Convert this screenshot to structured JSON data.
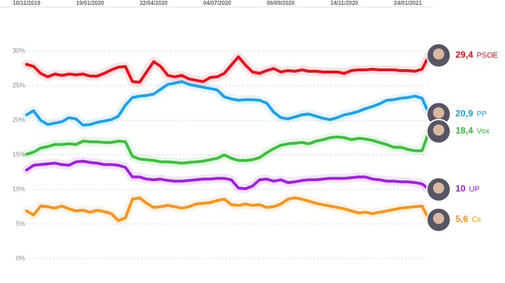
{
  "chart_data": {
    "type": "line",
    "categories": [
      "10/11/2019",
      null,
      null,
      null,
      null,
      null,
      null,
      null,
      null,
      "19/01/2020",
      null,
      null,
      null,
      null,
      null,
      null,
      null,
      null,
      "22/04/2020",
      null,
      null,
      null,
      null,
      null,
      null,
      null,
      null,
      "04/07/2020",
      null,
      null,
      null,
      null,
      null,
      null,
      null,
      null,
      "06/09/2020",
      null,
      null,
      null,
      null,
      null,
      null,
      null,
      null,
      "14/11/2020",
      null,
      null,
      null,
      null,
      null,
      null,
      null,
      null,
      "24/01/2021",
      null,
      null,
      null
    ],
    "series": [
      {
        "name": "PSOE",
        "color": "#e8101a",
        "values": [
          28.1,
          27.8,
          26.8,
          26.3,
          26.7,
          26.5,
          26.7,
          26.6,
          26.7,
          26.4,
          26.4,
          26.8,
          27.3,
          27.7,
          27.8,
          25.6,
          25.5,
          27,
          28.5,
          27.8,
          26.5,
          26.3,
          26.5,
          26,
          25.8,
          25.6,
          26.2,
          26.3,
          26.8,
          28,
          29.2,
          28,
          27,
          26.8,
          27.2,
          27.5,
          27,
          27.2,
          27.1,
          27.3,
          27.1,
          27.1,
          27,
          27,
          27,
          26.8,
          27.2,
          27.3,
          27.3,
          27.4,
          27.3,
          27.3,
          27.3,
          27.2,
          27.2,
          27.1,
          27.4,
          29.4
        ],
        "value_labels": [
          null,
          null,
          null,
          null,
          null,
          null,
          null,
          null,
          null,
          null,
          null,
          null,
          null,
          null,
          null,
          null,
          null,
          null,
          null,
          null,
          null,
          null,
          null,
          null,
          null,
          null,
          null,
          null,
          null,
          null,
          null,
          null,
          null,
          null,
          null,
          null,
          null,
          null,
          null,
          null,
          null,
          null,
          null,
          null,
          null,
          null,
          null,
          null,
          null,
          null,
          null,
          null,
          null,
          null,
          null,
          null,
          null,
          "29,4"
        ]
      },
      {
        "name": "PP",
        "color": "#1ea1e8",
        "values": [
          20.8,
          21.4,
          20,
          19.4,
          19.6,
          19.8,
          20.4,
          20.2,
          19.3,
          19.4,
          19.7,
          19.9,
          20.1,
          20.6,
          22.2,
          23.3,
          23.5,
          23.6,
          23.8,
          24.5,
          25.2,
          25.4,
          25.6,
          25.2,
          25,
          24.8,
          24.6,
          24.4,
          23.4,
          23.1,
          22.9,
          23,
          23,
          22.9,
          22.5,
          21.2,
          20.4,
          20.2,
          20.5,
          20.8,
          20.9,
          20.6,
          20.3,
          20.1,
          20.4,
          20.8,
          21,
          21.3,
          21.7,
          22,
          22.4,
          22.9,
          23,
          23.2,
          23.3,
          23.5,
          23.2,
          20.9
        ],
        "value_labels": [
          null,
          null,
          null,
          null,
          null,
          null,
          null,
          null,
          null,
          null,
          null,
          null,
          null,
          null,
          null,
          null,
          null,
          null,
          null,
          null,
          null,
          null,
          null,
          null,
          null,
          null,
          null,
          null,
          null,
          null,
          null,
          null,
          null,
          null,
          null,
          null,
          null,
          null,
          null,
          null,
          null,
          null,
          null,
          null,
          null,
          null,
          null,
          null,
          null,
          null,
          null,
          null,
          null,
          null,
          null,
          null,
          null,
          "20,9"
        ]
      },
      {
        "name": "Vox",
        "color": "#3cbf3c",
        "values": [
          15.1,
          15.4,
          16,
          16.2,
          16.5,
          16.5,
          16.6,
          16.5,
          17,
          16.9,
          16.9,
          16.8,
          16.8,
          17,
          16.9,
          14.8,
          14.4,
          14.3,
          14.2,
          14,
          14,
          13.9,
          13.8,
          13.9,
          14,
          14.1,
          14.3,
          14.5,
          15,
          14.5,
          14.2,
          14.2,
          14.3,
          14.6,
          15.3,
          15.9,
          16.4,
          16.6,
          16.7,
          16.8,
          16.6,
          17,
          17.2,
          17.5,
          17.6,
          17.5,
          17.2,
          17.4,
          17.3,
          17.1,
          16.8,
          16.5,
          16.1,
          16.1,
          15.8,
          15.6,
          15.6,
          18.4
        ],
        "value_labels": [
          null,
          null,
          null,
          null,
          null,
          null,
          null,
          null,
          null,
          null,
          null,
          null,
          null,
          null,
          null,
          null,
          null,
          null,
          null,
          null,
          null,
          null,
          null,
          null,
          null,
          null,
          null,
          null,
          null,
          null,
          null,
          null,
          null,
          null,
          null,
          null,
          null,
          null,
          null,
          null,
          null,
          null,
          null,
          null,
          null,
          null,
          null,
          null,
          null,
          null,
          null,
          null,
          null,
          null,
          null,
          null,
          null,
          "18,4"
        ]
      },
      {
        "name": "UP",
        "color": "#a020e0",
        "values": [
          12.8,
          13.5,
          13.6,
          13.7,
          13.8,
          13.6,
          13.5,
          14,
          14.1,
          13.9,
          13.8,
          13.6,
          13.6,
          13.5,
          13.2,
          11.8,
          11.8,
          11.5,
          11.4,
          11.5,
          11.3,
          11.2,
          11.2,
          11.3,
          11.4,
          11.5,
          11.5,
          11.6,
          11.6,
          11.4,
          10.2,
          10.1,
          10.5,
          11.4,
          11.5,
          11.2,
          11.4,
          11,
          11.1,
          11.3,
          11.4,
          11.4,
          11.5,
          11.6,
          11.6,
          11.6,
          11.7,
          11.8,
          11.8,
          11.5,
          11.4,
          11.2,
          11.2,
          11.1,
          11.1,
          11,
          10.8,
          10
        ],
        "value_labels": [
          null,
          null,
          null,
          null,
          null,
          null,
          null,
          null,
          null,
          null,
          null,
          null,
          null,
          null,
          null,
          null,
          null,
          null,
          null,
          null,
          null,
          null,
          null,
          null,
          null,
          null,
          null,
          null,
          null,
          null,
          null,
          null,
          null,
          null,
          null,
          null,
          null,
          null,
          null,
          null,
          null,
          null,
          null,
          null,
          null,
          null,
          null,
          null,
          null,
          null,
          null,
          null,
          null,
          null,
          null,
          null,
          null,
          "10"
        ]
      },
      {
        "name": "Cs",
        "color": "#f7941d",
        "values": [
          6.9,
          6.3,
          7.6,
          7.5,
          7.3,
          7.6,
          7.2,
          6.9,
          7,
          6.7,
          7,
          6.8,
          6.5,
          5.5,
          5.9,
          8.6,
          8.8,
          8,
          7.4,
          7.5,
          7.7,
          7.5,
          7.3,
          7.5,
          7.9,
          8,
          8.1,
          8.4,
          8.6,
          7.8,
          7.7,
          7.9,
          7.7,
          7.8,
          7.4,
          7.5,
          7.9,
          8.6,
          8.8,
          8.6,
          8.3,
          8,
          7.8,
          7.6,
          7.4,
          7.2,
          6.9,
          6.6,
          6.7,
          6.5,
          6.7,
          6.9,
          7.1,
          7.3,
          7.4,
          7.5,
          7.6,
          5.6
        ],
        "value_labels": [
          null,
          null,
          null,
          null,
          null,
          null,
          null,
          null,
          null,
          null,
          null,
          null,
          null,
          null,
          null,
          null,
          null,
          null,
          null,
          null,
          null,
          null,
          null,
          null,
          null,
          null,
          null,
          null,
          null,
          null,
          null,
          null,
          null,
          null,
          null,
          null,
          null,
          null,
          null,
          null,
          null,
          null,
          null,
          null,
          null,
          null,
          null,
          null,
          null,
          null,
          null,
          null,
          null,
          null,
          null,
          null,
          null,
          "5,6"
        ]
      }
    ],
    "ylim": [
      0,
      36
    ],
    "yticks": [
      {
        "value": 0,
        "label": "0%"
      },
      {
        "value": 5,
        "label": "5%"
      },
      {
        "value": 10,
        "label": "10%"
      },
      {
        "value": 15,
        "label": "15%"
      },
      {
        "value": 20,
        "label": "20%"
      },
      {
        "value": 25,
        "label": "25%"
      },
      {
        "value": 30,
        "label": "30%"
      }
    ],
    "grid": true
  }
}
